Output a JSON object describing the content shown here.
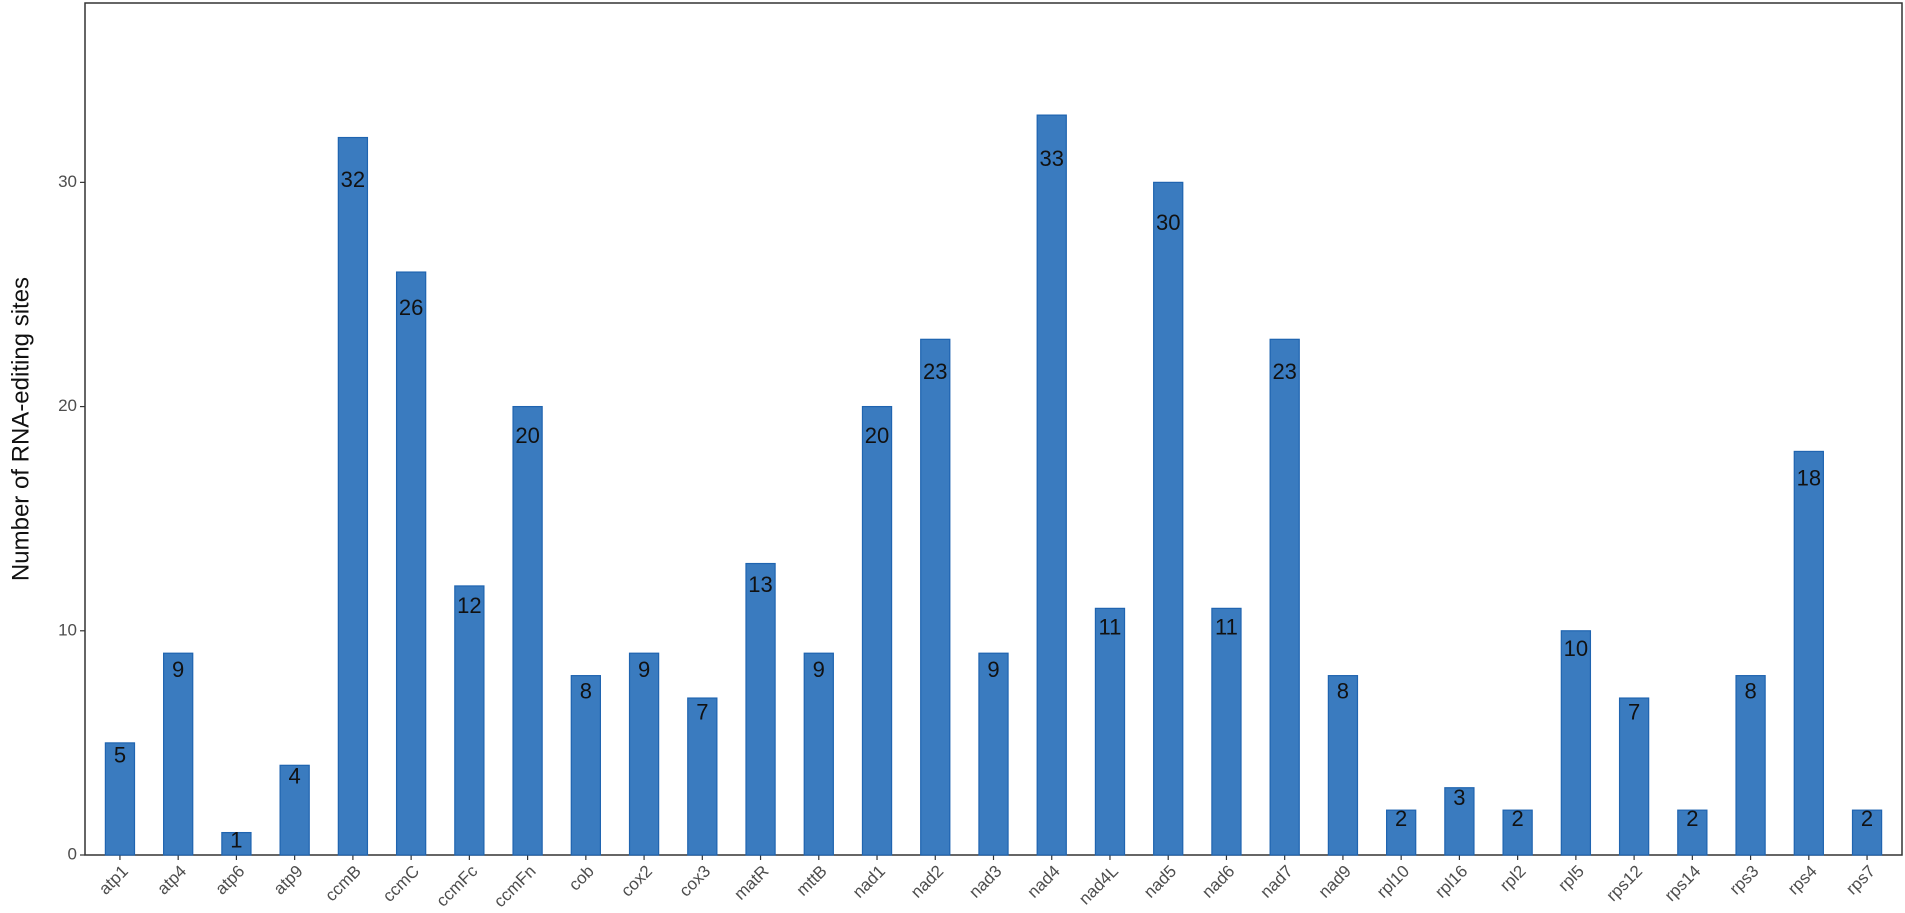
{
  "chart_data": {
    "type": "bar",
    "y_label": "Number of RNA-editing sites",
    "categories": [
      "atp1",
      "atp4",
      "atp6",
      "atp9",
      "ccmB",
      "ccmC",
      "ccmFc",
      "ccmFn",
      "cob",
      "cox2",
      "cox3",
      "matR",
      "mttB",
      "nad1",
      "nad2",
      "nad3",
      "nad4",
      "nad4L",
      "nad5",
      "nad6",
      "nad7",
      "nad9",
      "rpl10",
      "rpl16",
      "rpl2",
      "rpl5",
      "rps12",
      "rps14",
      "rps3",
      "rps4",
      "rps7"
    ],
    "values": [
      5,
      9,
      1,
      4,
      32,
      26,
      12,
      20,
      8,
      9,
      7,
      13,
      9,
      20,
      23,
      9,
      33,
      11,
      30,
      11,
      23,
      8,
      2,
      3,
      2,
      10,
      7,
      2,
      8,
      18,
      2
    ],
    "color": "#3a7bbf",
    "ylim": [
      0,
      38
    ],
    "yticks": [
      0,
      10,
      20,
      30
    ],
    "grid": false
  }
}
